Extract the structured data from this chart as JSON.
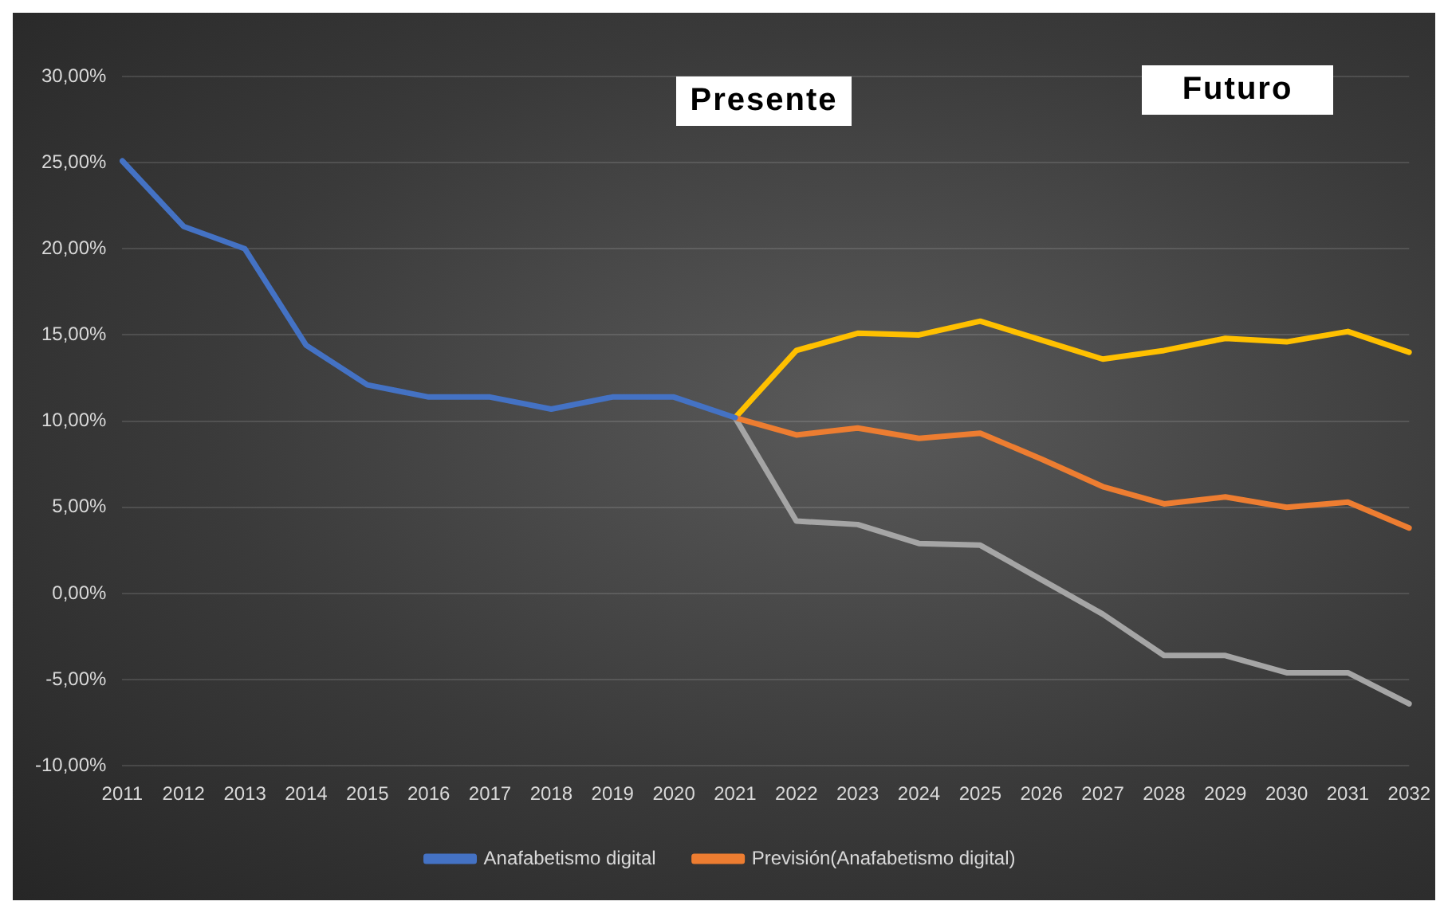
{
  "chart_data": {
    "type": "line",
    "categories": [
      "2011",
      "2012",
      "2013",
      "2014",
      "2015",
      "2016",
      "2017",
      "2018",
      "2019",
      "2020",
      "2021",
      "2022",
      "2023",
      "2024",
      "2025",
      "2026",
      "2027",
      "2028",
      "2029",
      "2030",
      "2031",
      "2032"
    ],
    "series": [
      {
        "name": "Anafabetismo digital",
        "color": "#4472c4",
        "values": [
          25.1,
          21.3,
          20.0,
          14.4,
          12.1,
          11.4,
          11.4,
          10.7,
          11.4,
          11.4,
          10.2,
          null,
          null,
          null,
          null,
          null,
          null,
          null,
          null,
          null,
          null,
          null
        ]
      },
      {
        "name": "Previsión(Anafabetismo digital)",
        "color": "#ed7d31",
        "values": [
          null,
          null,
          null,
          null,
          null,
          null,
          null,
          null,
          null,
          null,
          10.2,
          9.2,
          9.6,
          9.0,
          9.3,
          7.8,
          6.2,
          5.2,
          5.6,
          5.0,
          5.3,
          3.8
        ]
      },
      {
        "color": "#ffc000",
        "values": [
          null,
          null,
          null,
          null,
          null,
          null,
          null,
          null,
          null,
          null,
          10.2,
          14.1,
          15.1,
          15.0,
          15.8,
          14.7,
          13.6,
          14.1,
          14.8,
          14.6,
          15.2,
          14.0
        ]
      },
      {
        "color": "#a5a5a5",
        "values": [
          null,
          null,
          null,
          null,
          null,
          null,
          null,
          null,
          null,
          null,
          10.2,
          4.2,
          4.0,
          2.9,
          2.8,
          0.8,
          -1.2,
          -3.6,
          -3.6,
          -4.6,
          -4.6,
          -6.4
        ]
      }
    ],
    "ylim": [
      -10,
      30
    ],
    "yticks": [
      {
        "value": -10,
        "label": "-10,00%"
      },
      {
        "value": -5,
        "label": "-5,00%"
      },
      {
        "value": 0,
        "label": "0,00%"
      },
      {
        "value": 5,
        "label": "5,00%"
      },
      {
        "value": 10,
        "label": "10,00%"
      },
      {
        "value": 15,
        "label": "15,00%"
      },
      {
        "value": 20,
        "label": "20,00%"
      },
      {
        "value": 25,
        "label": "25,00%"
      },
      {
        "value": 30,
        "label": "30,00%"
      }
    ],
    "grid": "y",
    "legend": "bottom",
    "marker": "none",
    "line_style": "solid",
    "annotations": [
      "Presente",
      "Futuro"
    ]
  }
}
